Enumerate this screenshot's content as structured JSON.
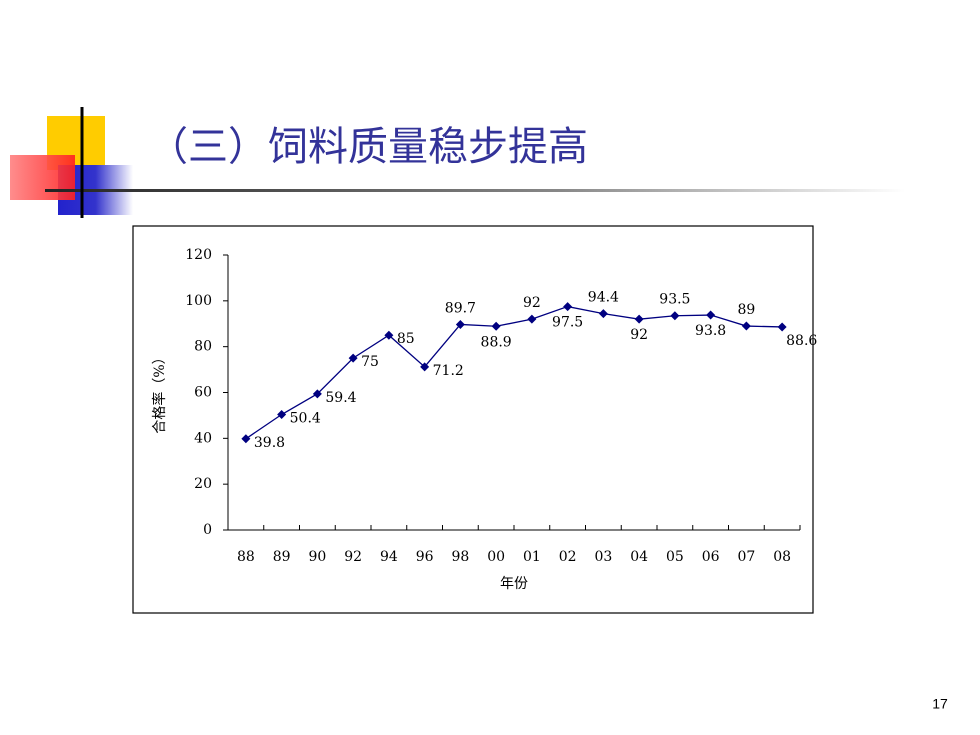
{
  "title": "（三）饲料质量稳步提高",
  "page_number": "17",
  "chart_data": {
    "type": "line",
    "y_label": "合格率（%）",
    "x_label": "年份",
    "categories": [
      "88",
      "89",
      "90",
      "92",
      "94",
      "96",
      "98",
      "00",
      "01",
      "02",
      "03",
      "04",
      "05",
      "06",
      "07",
      "08"
    ],
    "series": [
      {
        "name": "合格率",
        "color": "#000080",
        "values": [
          39.8,
          50.4,
          59.4,
          75,
          85,
          71.2,
          89.7,
          88.9,
          92,
          97.5,
          94.4,
          92,
          93.5,
          93.8,
          89,
          88.6
        ]
      }
    ],
    "ylim": [
      0,
      120
    ],
    "yticks": [
      0,
      20,
      40,
      60,
      80,
      100,
      120
    ],
    "grid": false,
    "legend": false
  }
}
